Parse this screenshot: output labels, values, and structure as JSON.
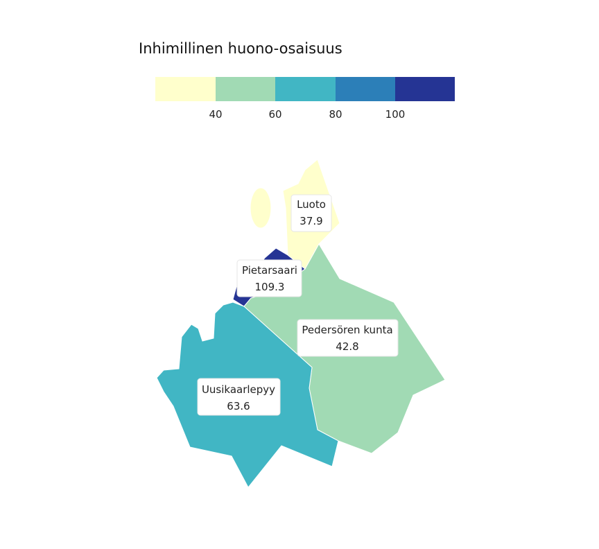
{
  "legend": {
    "title": "Inhimillinen huono-osaisuus",
    "bins": [
      {
        "color": "#ffffcc"
      },
      {
        "color": "#a1dab4"
      },
      {
        "color": "#41b6c4"
      },
      {
        "color": "#2c7fb8"
      },
      {
        "color": "#253494"
      }
    ],
    "ticks": [
      "40",
      "60",
      "80",
      "100"
    ]
  },
  "regions": [
    {
      "name": "Luoto",
      "value_label": "37.9",
      "value": 37.9,
      "color": "#ffffcc"
    },
    {
      "name": "Pietarsaari",
      "value_label": "109.3",
      "value": 109.3,
      "color": "#253494"
    },
    {
      "name": "Pedersören kunta",
      "value_label": "42.8",
      "value": 42.8,
      "color": "#a1dab4"
    },
    {
      "name": "Uusikaarlepyy",
      "value_label": "63.6",
      "value": 63.6,
      "color": "#41b6c4"
    }
  ]
}
